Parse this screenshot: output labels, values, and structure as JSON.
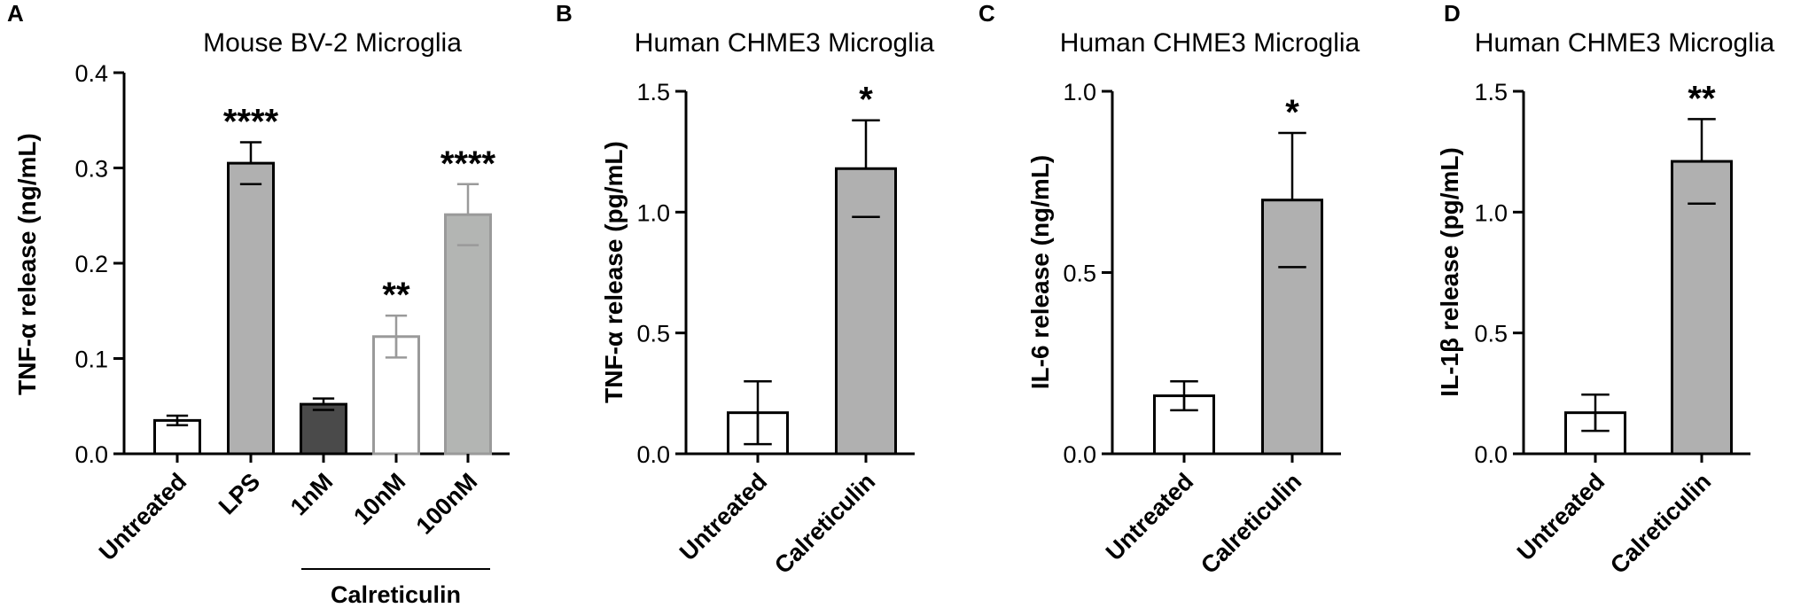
{
  "chart_data": [
    {
      "panel": "A",
      "type": "bar",
      "title": "Mouse BV-2 Microglia",
      "ylabel": "TNF-α release (ng/mL)",
      "ylim": [
        0,
        0.4
      ],
      "yticks": [
        "0.0",
        "0.1",
        "0.2",
        "0.3",
        "0.4"
      ],
      "categories": [
        "Untreated",
        "LPS",
        "1nM",
        "10nM",
        "100nM"
      ],
      "values": [
        0.035,
        0.305,
        0.052,
        0.123,
        0.251
      ],
      "errors": [
        0.005,
        0.022,
        0.006,
        0.022,
        0.032
      ],
      "significance": [
        "",
        "****",
        "",
        "**",
        "****"
      ],
      "bar_fills": [
        "#ffffff",
        "#b0b0b0",
        "#4a4a4a",
        "#ffffff",
        "#b3b5b3"
      ],
      "bar_strokes": [
        "#000000",
        "#000000",
        "#000000",
        "#9a9a9a",
        "#9a9a9a"
      ],
      "group_label": "Calreticulin",
      "group_categories": [
        "1nM",
        "10nM",
        "100nM"
      ]
    },
    {
      "panel": "B",
      "type": "bar",
      "title": "Human CHME3 Microglia",
      "ylabel": "TNF-α release (pg/mL)",
      "ylim": [
        0,
        1.5
      ],
      "yticks": [
        "0.0",
        "0.5",
        "1.0",
        "1.5"
      ],
      "categories": [
        "Untreated",
        "Calreticulin"
      ],
      "values": [
        0.17,
        1.18
      ],
      "errors": [
        0.13,
        0.2
      ],
      "significance": [
        "",
        "*"
      ],
      "bar_fills": [
        "#ffffff",
        "#b0b0b0"
      ],
      "bar_strokes": [
        "#000000",
        "#000000"
      ]
    },
    {
      "panel": "C",
      "type": "bar",
      "title": "Human CHME3 Microglia",
      "ylabel": "IL-6 release (ng/mL)",
      "ylim": [
        0,
        1.0
      ],
      "yticks": [
        "0.0",
        "0.5",
        "1.0"
      ],
      "categories": [
        "Untreated",
        "Calreticulin"
      ],
      "values": [
        0.16,
        0.7
      ],
      "errors": [
        0.04,
        0.185
      ],
      "significance": [
        "",
        "*"
      ],
      "bar_fills": [
        "#ffffff",
        "#b0b0b0"
      ],
      "bar_strokes": [
        "#000000",
        "#000000"
      ]
    },
    {
      "panel": "D",
      "type": "bar",
      "title": "Human CHME3 Microglia",
      "ylabel": "IL-1β release (pg/mL)",
      "ylim": [
        0,
        1.5
      ],
      "yticks": [
        "0.0",
        "0.5",
        "1.0",
        "1.5"
      ],
      "categories": [
        "Untreated",
        "Calreticulin"
      ],
      "values": [
        0.17,
        1.21
      ],
      "errors": [
        0.075,
        0.175
      ],
      "significance": [
        "",
        "**"
      ],
      "bar_fills": [
        "#ffffff",
        "#b0b0b0"
      ],
      "bar_strokes": [
        "#000000",
        "#000000"
      ]
    }
  ]
}
